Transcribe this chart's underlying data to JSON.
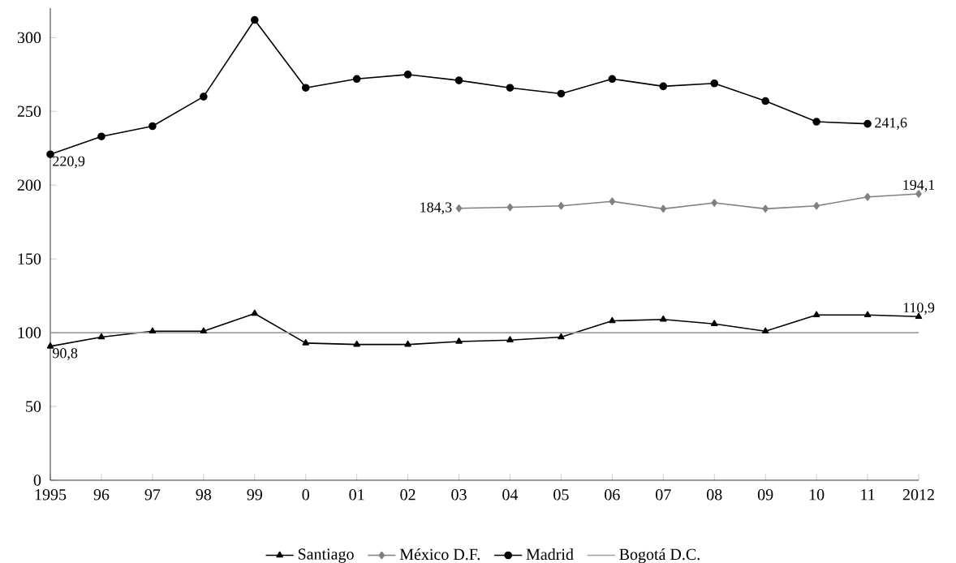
{
  "chart_data": {
    "type": "line",
    "categories": [
      "1995",
      "96",
      "97",
      "98",
      "99",
      "0",
      "01",
      "02",
      "03",
      "04",
      "05",
      "06",
      "07",
      "08",
      "09",
      "10",
      "11",
      "2012"
    ],
    "ylim": [
      0,
      320
    ],
    "yticks": [
      0,
      50,
      100,
      150,
      200,
      250,
      300
    ],
    "grid": false,
    "legend": "bottom",
    "series": [
      {
        "name": "Santiago",
        "color": "#000000",
        "marker": "triangle",
        "values": [
          90.8,
          97,
          101,
          101,
          113,
          93,
          92,
          92,
          94,
          95,
          97,
          108,
          109,
          106,
          101,
          112,
          112,
          110.9
        ],
        "value_labels": [
          "90,8",
          null,
          null,
          null,
          null,
          null,
          null,
          null,
          null,
          null,
          null,
          null,
          null,
          null,
          null,
          null,
          null,
          "110,9"
        ]
      },
      {
        "name": "México D.F.",
        "color": "#808080",
        "marker": "diamond",
        "values": [
          null,
          null,
          null,
          null,
          null,
          null,
          null,
          null,
          184.3,
          185,
          186,
          189,
          184,
          188,
          184,
          186,
          192,
          194.1
        ],
        "value_labels": [
          null,
          null,
          null,
          null,
          null,
          null,
          null,
          null,
          "184,3",
          null,
          null,
          null,
          null,
          null,
          null,
          null,
          null,
          "194,1"
        ]
      },
      {
        "name": "Madrid",
        "color": "#000000",
        "marker": "circle",
        "values": [
          220.9,
          233,
          240,
          260,
          312,
          266,
          272,
          275,
          271,
          266,
          262,
          272,
          267,
          269,
          257,
          243,
          241.6,
          null
        ],
        "value_labels": [
          "220,9",
          null,
          null,
          null,
          null,
          null,
          null,
          null,
          null,
          null,
          null,
          null,
          null,
          null,
          null,
          null,
          "241,6",
          null
        ]
      },
      {
        "name": "Bogotá D.C.",
        "color": "#a0a0a0",
        "marker": "none",
        "values": [
          100,
          100,
          100,
          100,
          100,
          100,
          100,
          100,
          100,
          100,
          100,
          100,
          100,
          100,
          100,
          100,
          100,
          100
        ]
      }
    ]
  }
}
